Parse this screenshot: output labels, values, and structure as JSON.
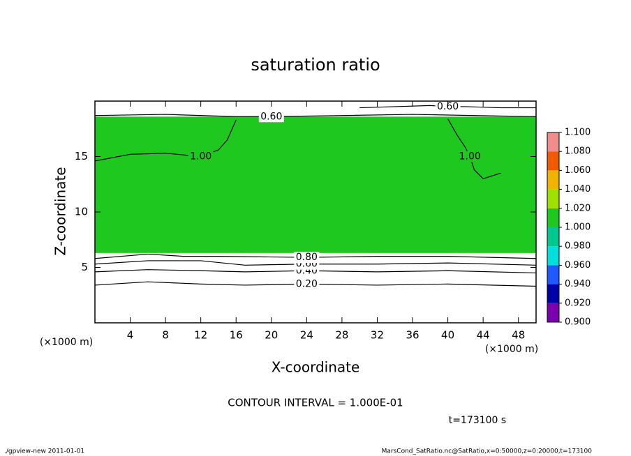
{
  "chart_data": {
    "type": "contour",
    "title": "saturation ratio",
    "x_label": "X-coordinate",
    "y_label": "Z-coordinate",
    "x_unit": "(×1000 m)",
    "y_unit": "(×1000 m)",
    "xlim": [
      0,
      50
    ],
    "xticks": [
      4,
      8,
      12,
      16,
      20,
      24,
      28,
      32,
      36,
      40,
      44,
      48
    ],
    "ylim": [
      0,
      20
    ],
    "yticks": [
      5,
      10,
      15
    ],
    "field": {
      "x": [
        0,
        50
      ],
      "z": [
        6.3,
        18.6
      ],
      "value": 1.0
    },
    "contours": [
      {
        "label": "0.20",
        "x": [
          0,
          6,
          12,
          17,
          24,
          32,
          40,
          50
        ],
        "z": [
          3.4,
          3.7,
          3.5,
          3.4,
          3.5,
          3.4,
          3.5,
          3.3
        ]
      },
      {
        "label": "0.40",
        "x": [
          0,
          6,
          12,
          17,
          24,
          32,
          40,
          50
        ],
        "z": [
          4.6,
          4.8,
          4.7,
          4.6,
          4.7,
          4.6,
          4.7,
          4.5
        ]
      },
      {
        "label": "0.60",
        "x": [
          0,
          6,
          12,
          17,
          24,
          32,
          40,
          50
        ],
        "z": [
          5.3,
          5.6,
          5.6,
          5.2,
          5.3,
          5.3,
          5.4,
          5.2
        ]
      },
      {
        "label": "0.80",
        "x": [
          0,
          6,
          10,
          14,
          24,
          32,
          40,
          50
        ],
        "z": [
          5.8,
          6.2,
          6.0,
          6.0,
          5.9,
          6.0,
          6.0,
          5.8
        ]
      },
      {
        "label": "1.00",
        "x": [
          0,
          4,
          8,
          12,
          14,
          15,
          16
        ],
        "z": [
          14.6,
          15.2,
          15.3,
          15.0,
          15.6,
          16.5,
          18.3
        ]
      },
      {
        "label": "1.00",
        "x": [
          40,
          41,
          42,
          42.5,
          43,
          44,
          46
        ],
        "z": [
          18.4,
          17.0,
          15.8,
          15.0,
          13.8,
          13.0,
          13.5
        ]
      },
      {
        "label": "0.60",
        "x": [
          0,
          8,
          16,
          20,
          28,
          36,
          50
        ],
        "z": [
          18.7,
          18.8,
          18.6,
          18.6,
          18.7,
          18.8,
          18.6
        ]
      },
      {
        "label": "0.60",
        "x": [
          30,
          34,
          38,
          40,
          42,
          46,
          50
        ],
        "z": [
          19.4,
          19.5,
          19.6,
          19.5,
          19.5,
          19.4,
          19.4
        ]
      }
    ],
    "colorbar": {
      "levels": [
        0.9,
        0.92,
        0.94,
        0.96,
        0.98,
        1.0,
        1.02,
        1.04,
        1.06,
        1.08,
        1.1
      ],
      "colors": [
        "#7a00b0",
        "#0000a8",
        "#1e5aff",
        "#00dede",
        "#00c88c",
        "#1ec81e",
        "#a0e000",
        "#f0b400",
        "#f05a00",
        "#f08c8c"
      ],
      "ticks": [
        {
          "value": 0.9,
          "label": "0.900"
        },
        {
          "value": 0.92,
          "label": "0.920"
        },
        {
          "value": 0.94,
          "label": "0.940"
        },
        {
          "value": 0.96,
          "label": "0.960"
        },
        {
          "value": 0.98,
          "label": "0.980"
        },
        {
          "value": 1.0,
          "label": "1.000"
        },
        {
          "value": 1.02,
          "label": "1.020"
        },
        {
          "value": 1.04,
          "label": "1.040"
        },
        {
          "value": 1.06,
          "label": "1.060"
        },
        {
          "value": 1.08,
          "label": "1.080"
        },
        {
          "value": 1.1,
          "label": "1.100"
        }
      ]
    },
    "contour_interval": "CONTOUR INTERVAL = 1.000E-01",
    "time": "t=173100 s",
    "footer_left": "./gpview-new  2011-01-01",
    "footer_right": "MarsCond_SatRatio.nc@SatRatio,x=0:50000,z=0:20000,t=173100"
  }
}
